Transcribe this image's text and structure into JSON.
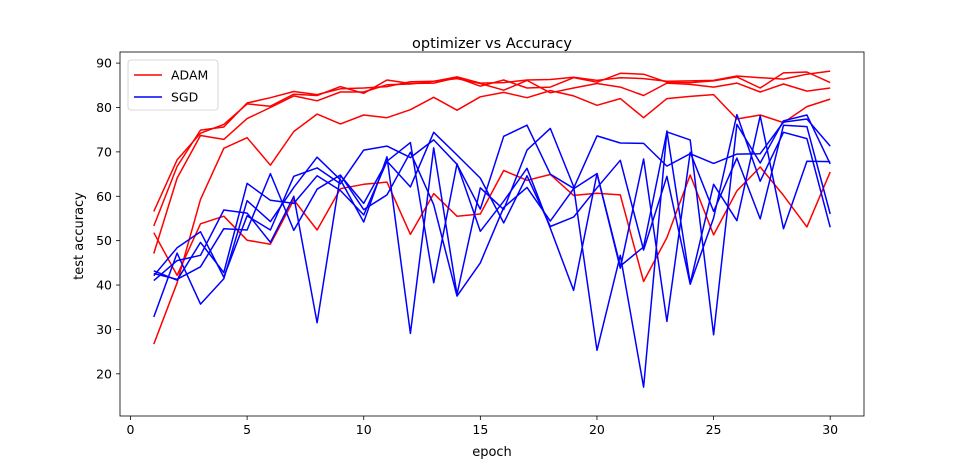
{
  "chart_data": {
    "type": "line",
    "title": "optimizer vs Accuracy",
    "xlabel": "epoch",
    "ylabel": "test accuracy",
    "xlim": [
      -0.45,
      31.45
    ],
    "ylim": [
      10.5,
      92.5
    ],
    "xticks": [
      0,
      5,
      10,
      15,
      20,
      25,
      30
    ],
    "yticks": [
      20,
      30,
      40,
      50,
      60,
      70,
      80,
      90
    ],
    "grid": false,
    "legend_position": "top-left",
    "legend": [
      {
        "label": "ADAM",
        "color": "#ff0000"
      },
      {
        "label": "SGD",
        "color": "#0000ff"
      }
    ],
    "x": [
      1,
      2,
      3,
      4,
      5,
      6,
      7,
      8,
      9,
      10,
      11,
      12,
      13,
      14,
      15,
      16,
      17,
      18,
      19,
      20,
      21,
      22,
      23,
      24,
      25,
      26,
      27,
      28,
      29,
      30
    ],
    "series": [
      {
        "group": "ADAM",
        "color": "#ff0000",
        "values": [
          56.6,
          68.2,
          74.2,
          76.2,
          80.8,
          80.3,
          83.0,
          82.7,
          84.7,
          83.2,
          86.2,
          85.4,
          85.5,
          86.7,
          84.8,
          86.2,
          84.4,
          84.6,
          86.7,
          85.7,
          87.7,
          87.5,
          85.7,
          85.6,
          86.0,
          86.9,
          84.4,
          87.8,
          88.0,
          85.6
        ]
      },
      {
        "group": "ADAM",
        "color": "#ff0000",
        "values": [
          53.3,
          66.7,
          74.9,
          75.6,
          81.0,
          82.2,
          83.6,
          82.9,
          84.2,
          84.4,
          84.7,
          85.8,
          85.9,
          86.9,
          85.5,
          85.6,
          86.2,
          86.3,
          86.8,
          86.1,
          86.7,
          86.5,
          85.9,
          86.0,
          86.1,
          87.1,
          86.7,
          86.4,
          87.5,
          88.2
        ]
      },
      {
        "group": "ADAM",
        "color": "#ff0000",
        "values": [
          47.1,
          64.1,
          73.7,
          72.8,
          77.5,
          80.0,
          82.6,
          81.5,
          83.5,
          83.5,
          85.1,
          85.3,
          85.9,
          86.5,
          85.4,
          83.9,
          86.1,
          83.3,
          84.4,
          85.4,
          84.6,
          82.7,
          85.5,
          85.2,
          84.6,
          85.5,
          83.5,
          85.3,
          83.7,
          84.4
        ]
      },
      {
        "group": "ADAM",
        "color": "#ff0000",
        "values": [
          26.7,
          40.5,
          59.3,
          70.8,
          73.2,
          67.0,
          74.6,
          78.5,
          76.3,
          78.3,
          77.7,
          79.5,
          82.3,
          79.4,
          82.4,
          83.4,
          82.2,
          83.8,
          82.6,
          80.5,
          82.0,
          77.7,
          82.0,
          82.5,
          82.9,
          77.4,
          78.3,
          76.6,
          80.2,
          81.9
        ]
      },
      {
        "group": "ADAM",
        "color": "#ff0000",
        "values": [
          51.8,
          42.2,
          53.8,
          55.5,
          50.1,
          49.2,
          59.2,
          52.4,
          61.7,
          62.7,
          63.2,
          51.4,
          60.6,
          55.5,
          56.0,
          65.8,
          63.6,
          64.9,
          60.2,
          60.7,
          60.3,
          40.8,
          50.7,
          64.8,
          51.3,
          61.2,
          66.6,
          60.2,
          53.1,
          65.5
        ]
      },
      {
        "group": "SGD",
        "color": "#0000ff",
        "values": [
          42.1,
          48.4,
          52.0,
          41.8,
          55.6,
          52.4,
          64.5,
          66.4,
          62.8,
          70.4,
          71.3,
          68.7,
          72.7,
          67.2,
          57.1,
          73.5,
          76.0,
          65.0,
          61.8,
          73.6,
          72.0,
          71.9,
          66.8,
          69.6,
          67.4,
          69.5,
          69.6,
          76.7,
          77.4,
          71.3
        ]
      },
      {
        "group": "SGD",
        "color": "#0000ff",
        "values": [
          41.0,
          45.5,
          46.7,
          56.9,
          56.2,
          49.6,
          60.0,
          31.5,
          64.7,
          58.4,
          67.9,
          72.1,
          40.5,
          67.3,
          52.1,
          58.9,
          66.3,
          52.8,
          38.8,
          65.1,
          44.3,
          48.6,
          74.5,
          72.7,
          28.8,
          76.2,
          67.5,
          77.0,
          78.3,
          67.3
        ]
      },
      {
        "group": "SGD",
        "color": "#0000ff",
        "values": [
          43.2,
          41.1,
          49.6,
          42.8,
          62.9,
          59.1,
          58.4,
          64.6,
          61.3,
          55.8,
          67.9,
          62.1,
          74.4,
          69.3,
          64.1,
          54.0,
          64.6,
          53.2,
          55.3,
          61.9,
          68.1,
          47.9,
          64.5,
          40.2,
          55.1,
          78.4,
          63.4,
          74.4,
          73.0,
          53.0
        ]
      },
      {
        "group": "SGD",
        "color": "#0000ff",
        "values": [
          32.8,
          47.2,
          35.7,
          41.4,
          59.0,
          54.3,
          62.0,
          68.8,
          63.7,
          54.2,
          68.9,
          29.1,
          70.9,
          37.9,
          61.9,
          57.0,
          70.4,
          75.3,
          62.2,
          25.3,
          46.7,
          17.0,
          74.7,
          40.4,
          62.7,
          54.5,
          78.1,
          52.7,
          67.9,
          67.8
        ]
      },
      {
        "group": "SGD",
        "color": "#0000ff",
        "values": [
          42.6,
          41.3,
          44.1,
          52.7,
          52.4,
          65.1,
          52.3,
          61.6,
          64.8,
          57.0,
          60.3,
          69.9,
          58.1,
          37.5,
          45.0,
          57.5,
          62.0,
          54.4,
          61.7,
          65.1,
          43.8,
          68.4,
          31.8,
          69.9,
          56.6,
          68.6,
          54.9,
          76.0,
          75.7,
          56.0
        ]
      }
    ]
  }
}
